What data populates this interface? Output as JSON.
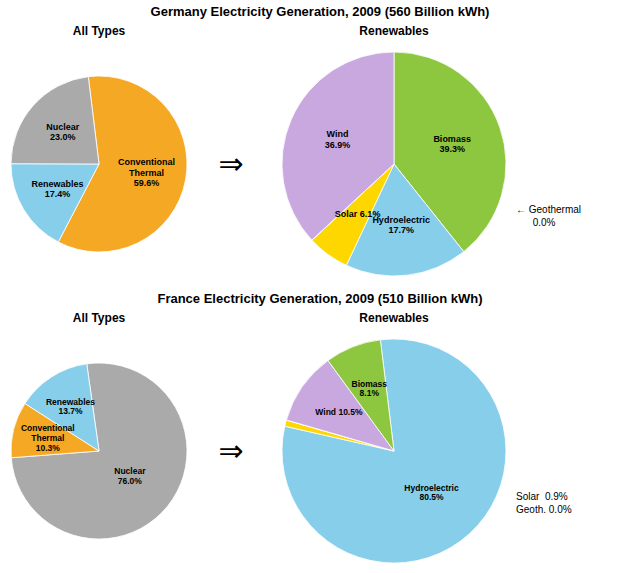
{
  "chart_data": [
    {
      "type": "pie",
      "title": "Germany Electricity Generation, 2009 (560 Billion kWh)",
      "subtitle": "All Types",
      "values": [
        59.6,
        17.4,
        23.0
      ],
      "value_labels": [
        "Conventional\nThermal\n59.6%",
        "Renewables\n17.4%",
        "Nuclear\n23.0%"
      ],
      "colors": [
        "#F5A823",
        "#87CEEB",
        "#AAAAAA"
      ],
      "annotations": [
        "⇒"
      ]
    },
    {
      "type": "pie",
      "subtitle": "Renewables",
      "values": [
        39.3,
        17.7,
        6.1,
        0.01,
        36.89
      ],
      "value_labels": [
        "Biomass\n39.3%",
        "Hydroelectric\n17.7%",
        "Solar 6.1%",
        "← Geothermal\n      0.0%",
        "Wind\n36.9%"
      ],
      "colors": [
        "#8DC63F",
        "#87CEEB",
        "#FFD700",
        "#FFFFFE",
        "#C9A8E0"
      ]
    },
    {
      "type": "pie",
      "title": "France Electricity Generation, 2009 (510 Billion kWh)",
      "subtitle": "All Types",
      "values": [
        76.0,
        10.3,
        13.7
      ],
      "value_labels": [
        "Nuclear\n76.0%",
        "Conventional\nThermal\n10.3%",
        "Renewables\n13.7%"
      ],
      "colors": [
        "#AAAAAA",
        "#F5A823",
        "#87CEEB"
      ],
      "annotations": [
        "⇒"
      ]
    },
    {
      "type": "pie",
      "subtitle": "Renewables",
      "values": [
        80.5,
        0.9,
        0.01,
        10.5,
        8.09
      ],
      "value_labels": [
        "Hydroelectric\n80.5%",
        "Solar  0.9%",
        "Geoth. 0.0%",
        "Wind 10.5%",
        "Biomass\n8.1%"
      ],
      "colors": [
        "#87CEEB",
        "#FFD700",
        "#FFFFFE",
        "#C9A8E0",
        "#8DC63F"
      ]
    }
  ]
}
